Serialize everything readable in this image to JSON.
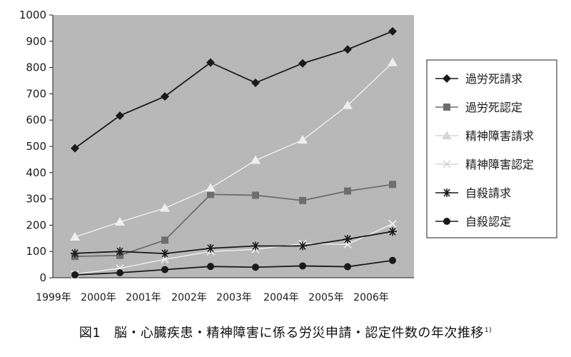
{
  "chart_data": {
    "type": "line",
    "x": [
      "1999年",
      "2000年",
      "2001年",
      "2002年",
      "2003年",
      "2004年",
      "2005年",
      "2006年"
    ],
    "ylim": [
      0,
      1000
    ],
    "yticks": [
      0,
      100,
      200,
      300,
      400,
      500,
      600,
      700,
      800,
      900,
      1000
    ],
    "grid": false,
    "legend_position": "right",
    "background": "#b8b8b8",
    "series": [
      {
        "name": "過労死請求",
        "marker": "diamond",
        "color": "#1a1a1a",
        "values": [
          493,
          617,
          690,
          819,
          742,
          816,
          869,
          938
        ]
      },
      {
        "name": "過労死認定",
        "marker": "square",
        "color": "#6e6e6e",
        "values": [
          81,
          85,
          143,
          317,
          314,
          294,
          330,
          355
        ]
      },
      {
        "name": "精神障害請求",
        "marker": "triangle",
        "color": "#efefef",
        "values": [
          155,
          212,
          265,
          341,
          447,
          524,
          656,
          819
        ]
      },
      {
        "name": "精神障害認定",
        "marker": "x",
        "color": "#efefef",
        "values": [
          14,
          36,
          70,
          100,
          108,
          130,
          127,
          205
        ]
      },
      {
        "name": "自殺請求",
        "marker": "asterisk",
        "color": "#1a1a1a",
        "values": [
          93,
          100,
          92,
          112,
          121,
          121,
          147,
          176
        ]
      },
      {
        "name": "自殺認定",
        "marker": "circle",
        "color": "#1a1a1a",
        "values": [
          11,
          19,
          31,
          43,
          40,
          45,
          42,
          66
        ]
      }
    ]
  },
  "caption": {
    "text": "図1　脳・心臓疾患・精神障害に係る労災申請・認定件数の年次推移",
    "ref": "1)"
  }
}
